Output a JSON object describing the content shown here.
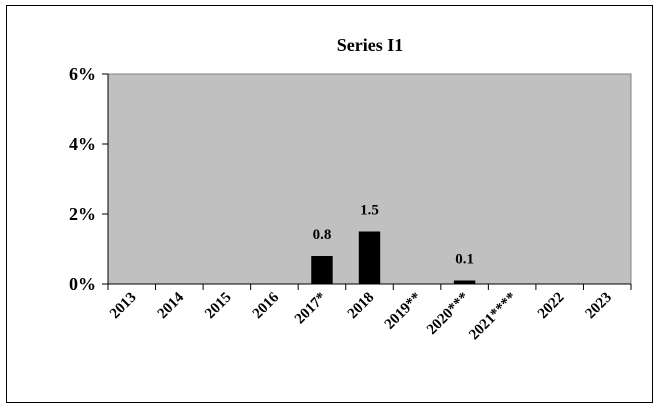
{
  "chart_data": {
    "type": "bar",
    "title": "Series I1",
    "categories": [
      "2013",
      "2014",
      "2015",
      "2016",
      "2017*",
      "2018",
      "2019**",
      "2020***",
      "2021****",
      "2022",
      "2023"
    ],
    "values": [
      null,
      null,
      null,
      null,
      0.8,
      1.5,
      null,
      0.1,
      null,
      null,
      null
    ],
    "data_labels": [
      "",
      "",
      "",
      "",
      "0.8",
      "1.5",
      "",
      "0.1",
      "",
      "",
      ""
    ],
    "ylim": [
      0,
      6
    ],
    "yticks": [
      0,
      2,
      4,
      6
    ],
    "ytick_labels": [
      "0%",
      "2%",
      "4%",
      "6%"
    ],
    "grid": false,
    "legend": "none",
    "colors": {
      "plot_background": "#c0c0c0",
      "bar": "#000000",
      "frame": "#000000"
    }
  }
}
